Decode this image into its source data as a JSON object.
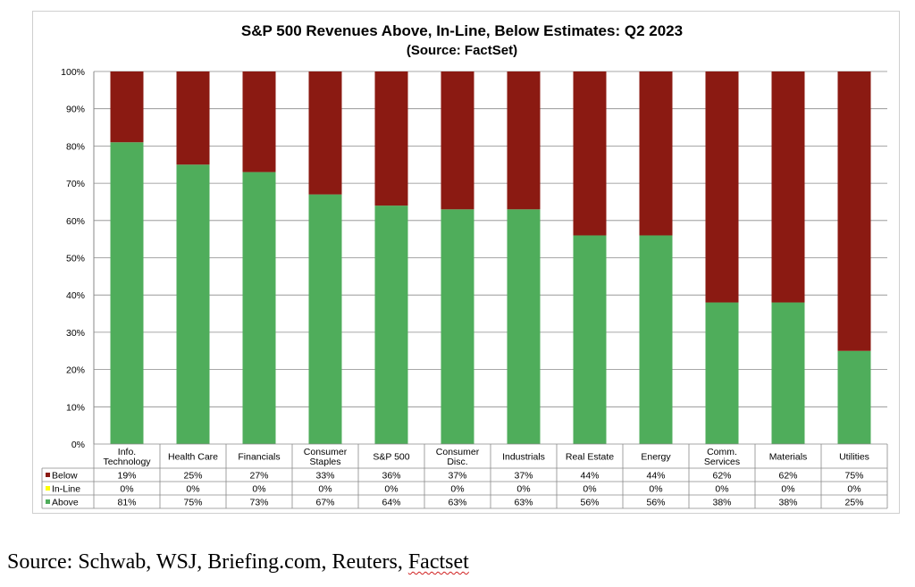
{
  "chart_data": {
    "type": "bar",
    "stacked": true,
    "title": "S&P 500 Revenues Above, In-Line, Below Estimates: Q2 2023",
    "subtitle": "(Source: FactSet)",
    "categories": [
      [
        "Info.",
        "Technology"
      ],
      [
        "Health Care"
      ],
      [
        "Financials"
      ],
      [
        "Consumer",
        "Staples"
      ],
      [
        "S&P 500"
      ],
      [
        "Consumer",
        "Disc."
      ],
      [
        "Industrials"
      ],
      [
        "Real Estate"
      ],
      [
        "Energy"
      ],
      [
        "Comm.",
        "Services"
      ],
      [
        "Materials"
      ],
      [
        "Utilities"
      ]
    ],
    "y_ticks": [
      "0%",
      "10%",
      "20%",
      "30%",
      "40%",
      "50%",
      "60%",
      "70%",
      "80%",
      "90%",
      "100%"
    ],
    "ylim": [
      0,
      100
    ],
    "grid": true,
    "legend_placement": "data-table",
    "series": [
      {
        "name": "Below",
        "color": "#8b1a12",
        "values": [
          19,
          25,
          27,
          33,
          36,
          37,
          37,
          44,
          44,
          62,
          62,
          75
        ],
        "labels": [
          "19%",
          "25%",
          "27%",
          "33%",
          "36%",
          "37%",
          "37%",
          "44%",
          "44%",
          "62%",
          "62%",
          "75%"
        ]
      },
      {
        "name": "In-Line",
        "color": "#ffff00",
        "values": [
          0,
          0,
          0,
          0,
          0,
          0,
          0,
          0,
          0,
          0,
          0,
          0
        ],
        "labels": [
          "0%",
          "0%",
          "0%",
          "0%",
          "0%",
          "0%",
          "0%",
          "0%",
          "0%",
          "0%",
          "0%",
          "0%"
        ]
      },
      {
        "name": "Above",
        "color": "#4fad5b",
        "values": [
          81,
          75,
          73,
          67,
          64,
          63,
          63,
          56,
          56,
          38,
          38,
          25
        ],
        "labels": [
          "81%",
          "75%",
          "73%",
          "67%",
          "64%",
          "63%",
          "63%",
          "56%",
          "56%",
          "38%",
          "38%",
          "25%"
        ]
      }
    ]
  },
  "source": {
    "prefix": "Source: Schwab, WSJ, Briefing.com, Reuters, ",
    "last": "Factset"
  }
}
